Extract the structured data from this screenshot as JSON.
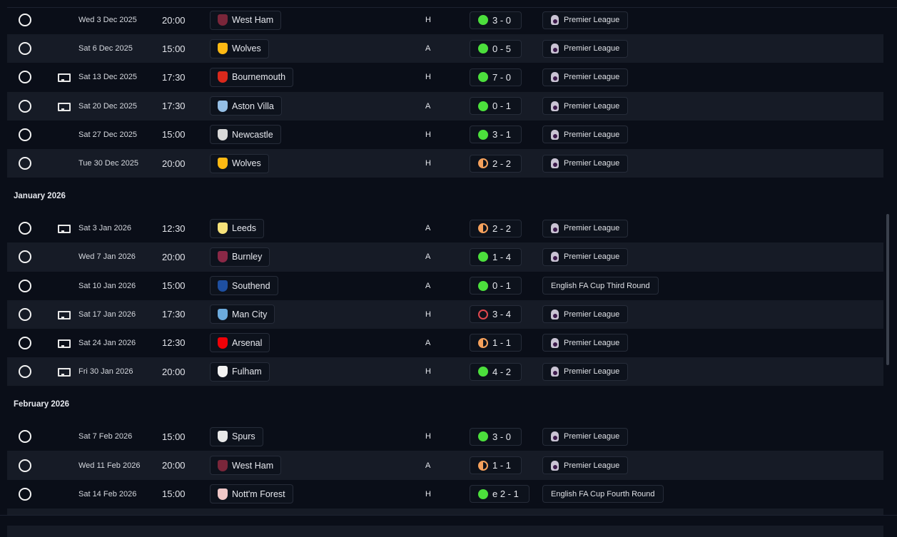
{
  "colors": {
    "win": "#4cdf3c",
    "draw": "#f5a15c",
    "loss": "#e0484e",
    "background": "#0a0e18",
    "row_alt": "#161b26"
  },
  "sections": [
    {
      "title": "",
      "rows": [
        {
          "tv": false,
          "date": "Wed 3 Dec 2025",
          "time": "20:00",
          "team": "West Ham",
          "crest": "#7a263a",
          "venue": "H",
          "outcome": "W",
          "score": "3 - 0",
          "competition": "Premier League",
          "pl": true
        },
        {
          "tv": false,
          "date": "Sat 6 Dec 2025",
          "time": "15:00",
          "team": "Wolves",
          "crest": "#fdb913",
          "venue": "A",
          "outcome": "W",
          "score": "0 - 5",
          "competition": "Premier League",
          "pl": true
        },
        {
          "tv": true,
          "date": "Sat 13 Dec 2025",
          "time": "17:30",
          "team": "Bournemouth",
          "crest": "#da291c",
          "venue": "H",
          "outcome": "W",
          "score": "7 - 0",
          "competition": "Premier League",
          "pl": true
        },
        {
          "tv": true,
          "date": "Sat 20 Dec 2025",
          "time": "17:30",
          "team": "Aston Villa",
          "crest": "#95bfe5",
          "venue": "A",
          "outcome": "W",
          "score": "0 - 1",
          "competition": "Premier League",
          "pl": true
        },
        {
          "tv": false,
          "date": "Sat 27 Dec 2025",
          "time": "15:00",
          "team": "Newcastle",
          "crest": "#d9d9d9",
          "venue": "H",
          "outcome": "W",
          "score": "3 - 1",
          "competition": "Premier League",
          "pl": true
        },
        {
          "tv": false,
          "date": "Tue 30 Dec 2025",
          "time": "20:00",
          "team": "Wolves",
          "crest": "#fdb913",
          "venue": "H",
          "outcome": "D",
          "score": "2 - 2",
          "competition": "Premier League",
          "pl": true
        }
      ]
    },
    {
      "title": "January 2026",
      "rows": [
        {
          "tv": true,
          "date": "Sat 3 Jan 2026",
          "time": "12:30",
          "team": "Leeds",
          "crest": "#f6e27a",
          "venue": "A",
          "outcome": "D",
          "score": "2 - 2",
          "competition": "Premier League",
          "pl": true
        },
        {
          "tv": false,
          "date": "Wed 7 Jan 2026",
          "time": "20:00",
          "team": "Burnley",
          "crest": "#8a2846",
          "venue": "A",
          "outcome": "W",
          "score": "1 - 4",
          "competition": "Premier League",
          "pl": true
        },
        {
          "tv": false,
          "date": "Sat 10 Jan 2026",
          "time": "15:00",
          "team": "Southend",
          "crest": "#1e4fa0",
          "venue": "A",
          "outcome": "W",
          "score": "0 - 1",
          "competition": "English FA Cup Third Round",
          "pl": false
        },
        {
          "tv": true,
          "date": "Sat 17 Jan 2026",
          "time": "17:30",
          "team": "Man City",
          "crest": "#6cabdd",
          "venue": "H",
          "outcome": "L",
          "score": "3 - 4",
          "competition": "Premier League",
          "pl": true
        },
        {
          "tv": true,
          "date": "Sat 24 Jan 2026",
          "time": "12:30",
          "team": "Arsenal",
          "crest": "#ef0107",
          "venue": "A",
          "outcome": "D",
          "score": "1 - 1",
          "competition": "Premier League",
          "pl": true
        },
        {
          "tv": true,
          "date": "Fri 30 Jan 2026",
          "time": "20:00",
          "team": "Fulham",
          "crest": "#f2f2f2",
          "venue": "H",
          "outcome": "W",
          "score": "4 - 2",
          "competition": "Premier League",
          "pl": true
        }
      ]
    },
    {
      "title": "February 2026",
      "rows": [
        {
          "tv": false,
          "date": "Sat 7 Feb 2026",
          "time": "15:00",
          "team": "Spurs",
          "crest": "#e8e8e8",
          "venue": "H",
          "outcome": "W",
          "score": "3 - 0",
          "competition": "Premier League",
          "pl": true
        },
        {
          "tv": false,
          "date": "Wed 11 Feb 2026",
          "time": "20:00",
          "team": "West Ham",
          "crest": "#7a263a",
          "venue": "A",
          "outcome": "D",
          "score": "1 - 1",
          "competition": "Premier League",
          "pl": true
        },
        {
          "tv": false,
          "date": "Sat 14 Feb 2026",
          "time": "15:00",
          "team": "Nott'm Forest",
          "crest": "#f0c8c8",
          "venue": "H",
          "outcome": "W",
          "score": "e 2 - 1",
          "competition": "English FA Cup Fourth Round",
          "pl": false
        }
      ]
    }
  ]
}
